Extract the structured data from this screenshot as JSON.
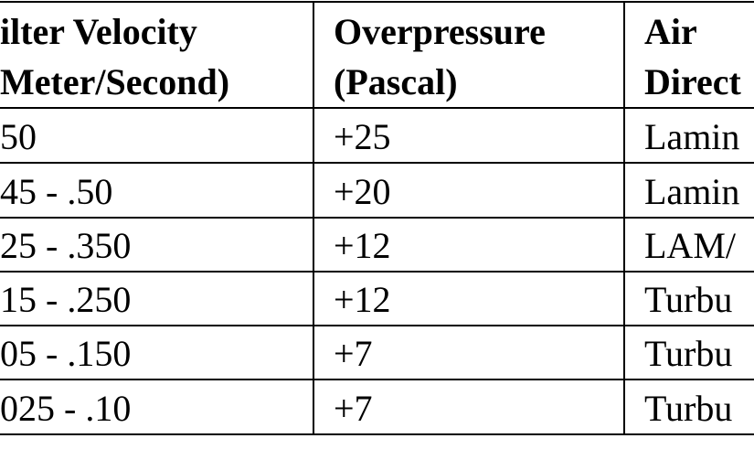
{
  "table": {
    "header": [
      [
        "ilter Velocity",
        "Meter/Second)"
      ],
      [
        "Overpressure",
        "(Pascal)"
      ],
      [
        "Air",
        "Direct"
      ]
    ],
    "rows": [
      [
        "50",
        "+25",
        "Lamin"
      ],
      [
        "45 - .50",
        "+20",
        "Lamin"
      ],
      [
        "25 - .350",
        "+12",
        "LAM/"
      ],
      [
        "15 - .250",
        "+12",
        "Turbu"
      ],
      [
        "05 - .150",
        "+7",
        "Turbu"
      ],
      [
        "025 - .10",
        "+7",
        "Turbu"
      ]
    ]
  }
}
